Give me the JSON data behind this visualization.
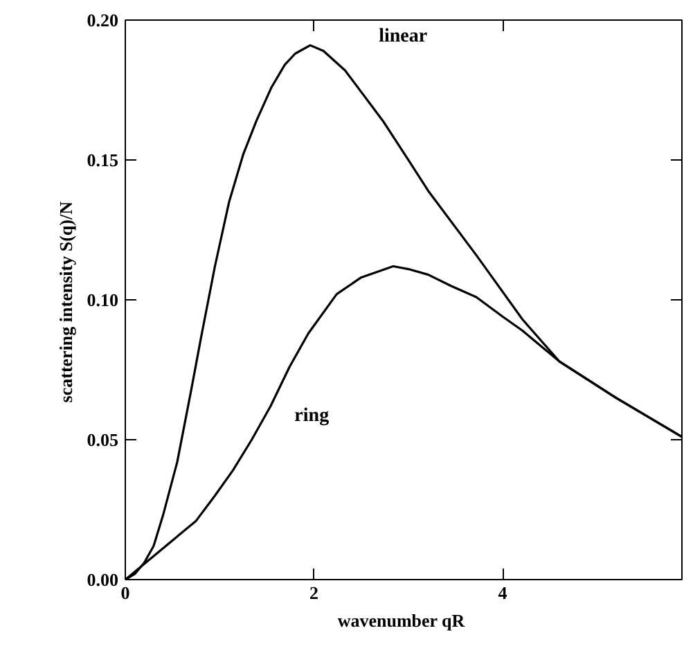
{
  "chart_data": {
    "type": "line",
    "xlabel": "wavenumber  qR",
    "ylabel": "scattering intensity  S(q)/N",
    "xlim": [
      0,
      5.9
    ],
    "ylim": [
      0,
      0.2
    ],
    "xticks": [
      0,
      2,
      4
    ],
    "yticks": [
      {
        "value": 0,
        "label": "0.00"
      },
      {
        "value": 0.05,
        "label": "0.05"
      },
      {
        "value": 0.1,
        "label": "0.10"
      },
      {
        "value": 0.15,
        "label": "0.15"
      },
      {
        "value": 0.2,
        "label": "0.20"
      }
    ],
    "grid": false,
    "marker": "none",
    "line_style": "solid",
    "series": [
      {
        "name": "linear",
        "color": "#000000",
        "x": [
          0,
          0.1,
          0.2,
          0.3,
          0.4,
          0.55,
          0.7,
          0.8,
          0.95,
          1.1,
          1.25,
          1.39,
          1.55,
          1.69,
          1.8,
          1.96,
          2.1,
          2.33,
          2.73,
          3.02,
          3.21,
          3.72,
          4.21,
          4.6,
          5.2,
          5.9
        ],
        "values": [
          0,
          0.002,
          0.006,
          0.012,
          0.023,
          0.042,
          0.068,
          0.086,
          0.112,
          0.135,
          0.152,
          0.164,
          0.176,
          0.184,
          0.188,
          0.191,
          0.189,
          0.182,
          0.164,
          0.149,
          0.139,
          0.116,
          0.093,
          0.078,
          0.065,
          0.051
        ]
      },
      {
        "name": "ring",
        "color": "#000000",
        "x": [
          0,
          0.25,
          0.5,
          0.75,
          0.95,
          1.14,
          1.34,
          1.54,
          1.74,
          1.94,
          2.24,
          2.5,
          2.84,
          3.0,
          3.21,
          3.45,
          3.72,
          4.0,
          4.21,
          4.6,
          5.2,
          5.9
        ],
        "values": [
          0,
          0.007,
          0.014,
          0.021,
          0.03,
          0.039,
          0.05,
          0.062,
          0.076,
          0.088,
          0.102,
          0.108,
          0.112,
          0.111,
          0.109,
          0.105,
          0.101,
          0.094,
          0.089,
          0.078,
          0.065,
          0.051
        ]
      }
    ]
  }
}
